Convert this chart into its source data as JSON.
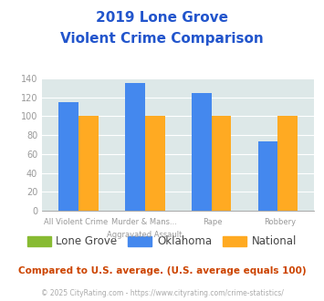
{
  "title_line1": "2019 Lone Grove",
  "title_line2": "Violent Crime Comparison",
  "x_labels_line1": [
    "",
    "Murder & Mans...",
    "",
    ""
  ],
  "x_labels_line2": [
    "All Violent Crime",
    "Aggravated Assault",
    "Rape",
    "Robbery"
  ],
  "lone_grove": [
    null,
    null,
    null,
    null
  ],
  "oklahoma": [
    115,
    135,
    124,
    73
  ],
  "national": [
    100,
    100,
    100,
    100
  ],
  "bar_color_lone_grove": "#88bb33",
  "bar_color_oklahoma": "#4488ee",
  "bar_color_national": "#ffaa22",
  "ylim": [
    0,
    140
  ],
  "yticks": [
    0,
    20,
    40,
    60,
    80,
    100,
    120,
    140
  ],
  "plot_bg_color": "#dde8e8",
  "title_color": "#2255cc",
  "tick_color": "#999999",
  "grid_color": "#ffffff",
  "footer_text": "Compared to U.S. average. (U.S. average equals 100)",
  "footer_color": "#cc4400",
  "copyright_text": "© 2025 CityRating.com - https://www.cityrating.com/crime-statistics/",
  "copyright_color": "#aaaaaa",
  "legend_labels": [
    "Lone Grove",
    "Oklahoma",
    "National"
  ]
}
